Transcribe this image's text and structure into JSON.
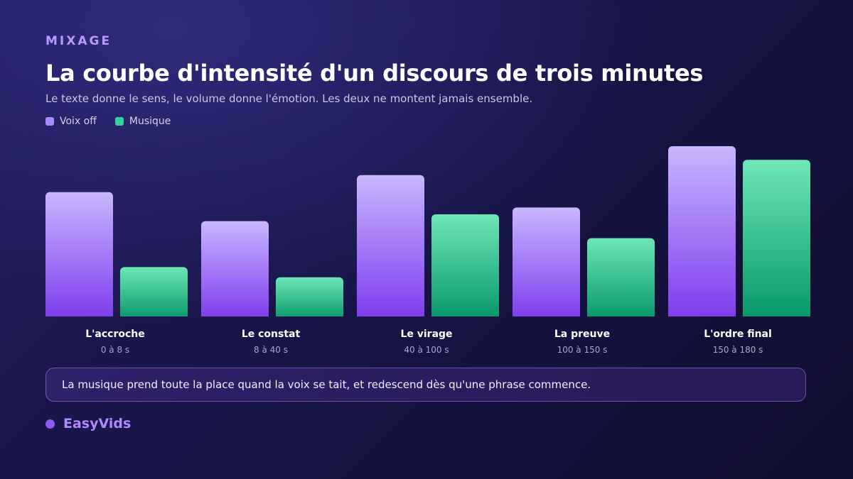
{
  "header": {
    "eyebrow": "MIXAGE",
    "title": "La courbe d'intensité d'un discours de trois minutes",
    "subtitle": "Le texte donne le sens, le volume donne l'émotion. Les deux ne montent jamais ensemble."
  },
  "legend": [
    {
      "label": "Voix off",
      "color": "#a78bfa"
    },
    {
      "label": "Musique",
      "color": "#34d399"
    }
  ],
  "colors": {
    "voice_top": "#c9b6ff",
    "voice_bottom": "#7c3aed",
    "music_top": "#6ee7b7",
    "music_bottom": "#059669"
  },
  "chart_data": {
    "type": "bar",
    "title": "La courbe d'intensité d'un discours de trois minutes",
    "categories": [
      "L'accroche",
      "Le constat",
      "Le virage",
      "La preuve",
      "L'ordre final"
    ],
    "sublabels": [
      "0 à 8 s",
      "8 à 40 s",
      "40 à 100 s",
      "100 à 150 s",
      "150 à 180 s"
    ],
    "series": [
      {
        "name": "Voix off",
        "values": [
          73,
          56,
          83,
          64,
          100
        ]
      },
      {
        "name": "Musique",
        "values": [
          29,
          23,
          60,
          46,
          92
        ]
      }
    ],
    "ylim": [
      0,
      100
    ],
    "grid": false,
    "legend_position": "top-left"
  },
  "note": "La musique prend toute la place quand la voix se tait, et redescend dès qu'une phrase commence.",
  "brand": "EasyVids"
}
